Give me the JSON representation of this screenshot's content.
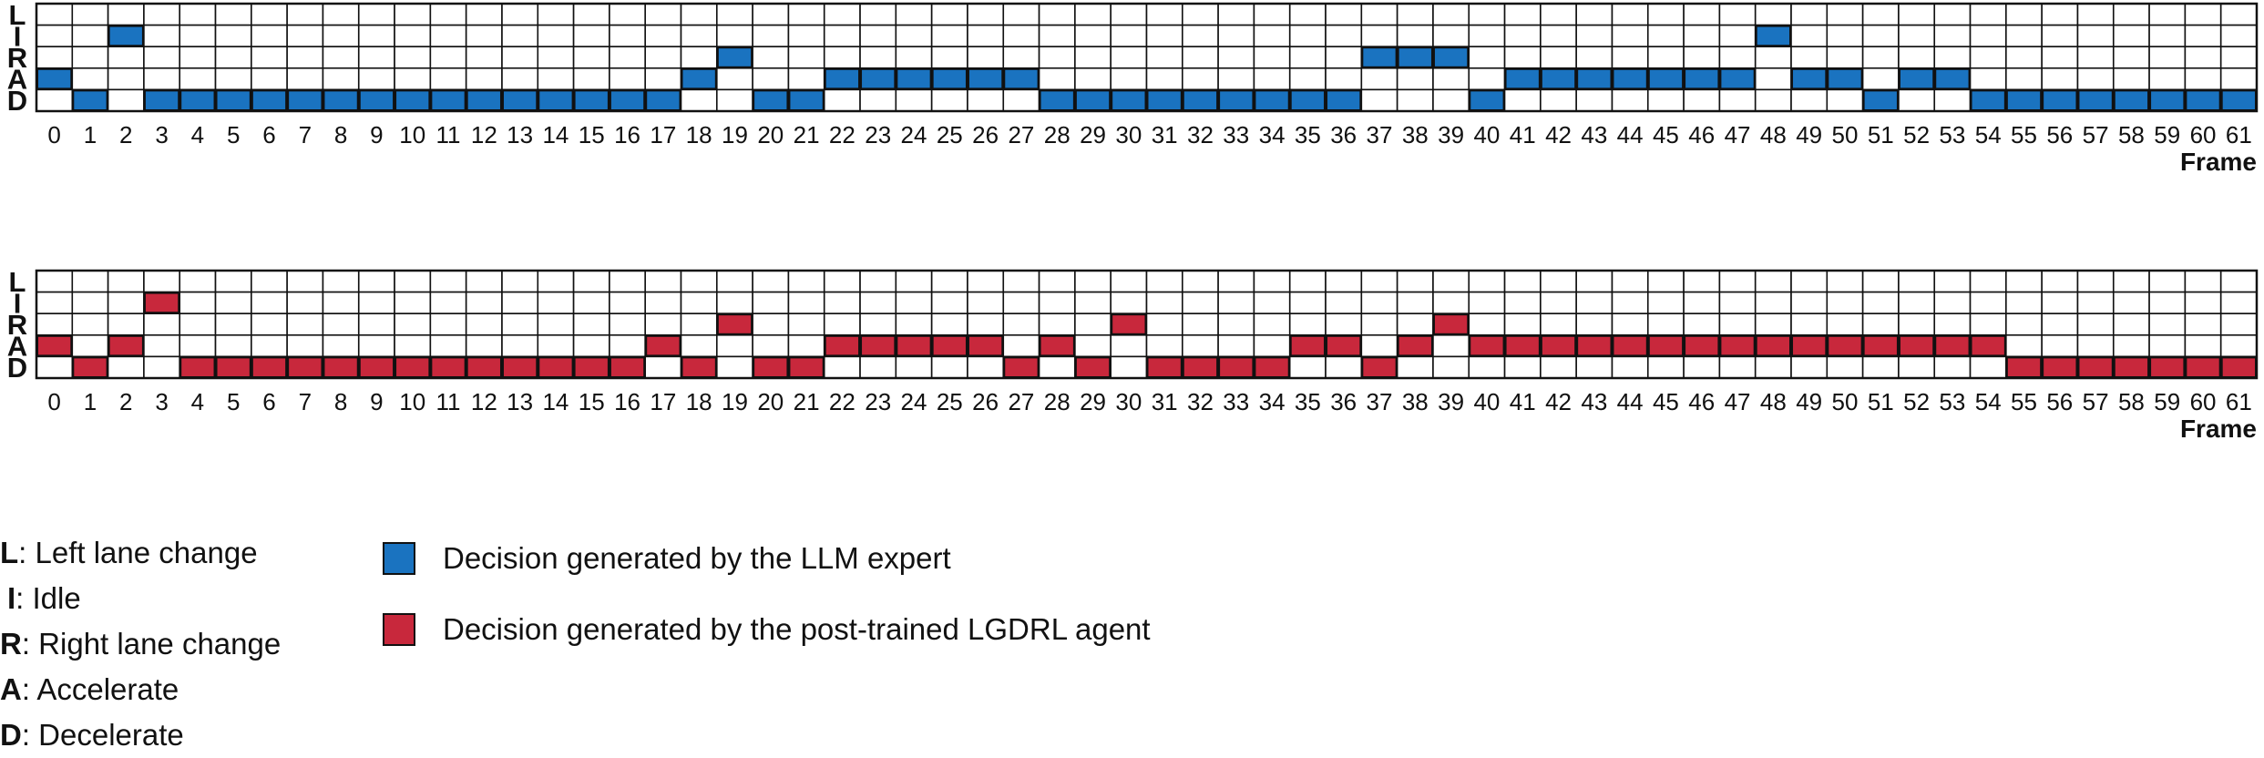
{
  "chart_data": {
    "type": "heatmap",
    "row_labels": [
      "L",
      "I",
      "R",
      "A",
      "D"
    ],
    "xlabel": "Frame",
    "frames": [
      0,
      1,
      2,
      3,
      4,
      5,
      6,
      7,
      8,
      9,
      10,
      11,
      12,
      13,
      14,
      15,
      16,
      17,
      18,
      19,
      20,
      21,
      22,
      23,
      24,
      25,
      26,
      27,
      28,
      29,
      30,
      31,
      32,
      33,
      34,
      35,
      36,
      37,
      38,
      39,
      40,
      41,
      42,
      43,
      44,
      45,
      46,
      47,
      48,
      49,
      50,
      51,
      52,
      53,
      54,
      55,
      56,
      57,
      58,
      59,
      60,
      61
    ],
    "series": [
      {
        "name": "Decision generated by the LLM expert",
        "color": "#1a73c0",
        "decisions": [
          "A",
          "D",
          "I",
          "D",
          "D",
          "D",
          "D",
          "D",
          "D",
          "D",
          "D",
          "D",
          "D",
          "D",
          "D",
          "D",
          "D",
          "D",
          "A",
          "R",
          "D",
          "D",
          "A",
          "A",
          "A",
          "A",
          "A",
          "A",
          "D",
          "D",
          "D",
          "D",
          "D",
          "D",
          "D",
          "D",
          "D",
          "R",
          "R",
          "R",
          "D",
          "A",
          "A",
          "A",
          "A",
          "A",
          "A",
          "A",
          "I",
          "A",
          "A",
          "D",
          "A",
          "A",
          "D",
          "D",
          "D",
          "D",
          "D",
          "D",
          "D",
          "D"
        ]
      },
      {
        "name": "Decision generated by the post-trained LGDRL agent",
        "color": "#c8283c",
        "decisions": [
          "A",
          "D",
          "A",
          "I",
          "D",
          "D",
          "D",
          "D",
          "D",
          "D",
          "D",
          "D",
          "D",
          "D",
          "D",
          "D",
          "D",
          "A",
          "D",
          "R",
          "D",
          "D",
          "A",
          "A",
          "A",
          "A",
          "A",
          "D",
          "A",
          "D",
          "R",
          "D",
          "D",
          "D",
          "D",
          "A",
          "A",
          "D",
          "A",
          "R",
          "A",
          "A",
          "A",
          "A",
          "A",
          "A",
          "A",
          "A",
          "A",
          "A",
          "A",
          "A",
          "A",
          "A",
          "A",
          "D",
          "D",
          "D",
          "D",
          "D",
          "D",
          "D"
        ]
      }
    ]
  },
  "legend": {
    "abbreviations": [
      {
        "key": "L",
        "desc": ": Left lane change"
      },
      {
        "key": "I",
        "desc": ": Idle"
      },
      {
        "key": "R",
        "desc": ": Right lane change"
      },
      {
        "key": "A",
        "desc": ": Accelerate"
      },
      {
        "key": "D",
        "desc": ": Decelerate"
      }
    ]
  }
}
